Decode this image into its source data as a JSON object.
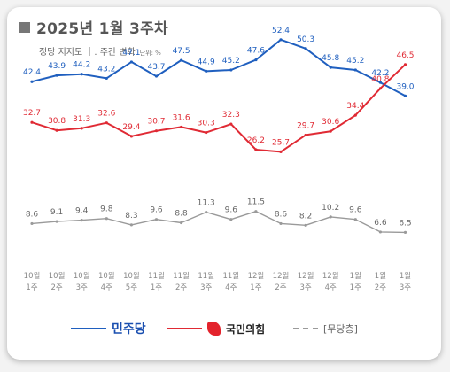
{
  "title": "2025년 1월 3주차",
  "subtitle": "정당 지지도 ｜. 주간 변화",
  "unit_note": "단위: %",
  "legend": {
    "dem": "민주당",
    "ppp": "국민의힘",
    "ind": "[무당층]"
  },
  "colors": {
    "dem": "#1f5fbf",
    "ppp": "#e02a34",
    "ind": "#9a9a9a"
  },
  "chart_data": {
    "type": "line",
    "categories": [
      [
        "10월",
        "1주"
      ],
      [
        "10월",
        "2주"
      ],
      [
        "10월",
        "3주"
      ],
      [
        "10월",
        "4주"
      ],
      [
        "10월",
        "5주"
      ],
      [
        "11월",
        "1주"
      ],
      [
        "11월",
        "2주"
      ],
      [
        "11월",
        "3주"
      ],
      [
        "11월",
        "4주"
      ],
      [
        "12월",
        "1주"
      ],
      [
        "12월",
        "2주"
      ],
      [
        "12월",
        "3주"
      ],
      [
        "12월",
        "4주"
      ],
      [
        "1월",
        "1주"
      ],
      [
        "1월",
        "2주"
      ],
      [
        "1월",
        "3주"
      ]
    ],
    "series": [
      {
        "name": "민주당",
        "color": "#1f5fbf",
        "values": [
          42.4,
          43.9,
          44.2,
          43.2,
          47.1,
          43.7,
          47.5,
          44.9,
          45.2,
          47.6,
          52.4,
          50.3,
          45.8,
          45.2,
          42.2,
          39.0
        ],
        "labels": [
          "42.4",
          "43.9",
          "44.2",
          "43.2",
          "47.1",
          "43.7",
          "47.5",
          "44.9",
          "45.2",
          "47.6",
          "52.4",
          "50.3",
          "45.8",
          "45.2",
          "42.2",
          "39.0"
        ]
      },
      {
        "name": "국민의힘",
        "color": "#e02a34",
        "values": [
          32.7,
          30.8,
          31.3,
          32.6,
          29.4,
          30.7,
          31.6,
          30.3,
          32.3,
          26.2,
          25.7,
          29.7,
          30.6,
          34.4,
          40.8,
          46.5
        ],
        "labels": [
          "32.7",
          "30.8",
          "31.3",
          "32.6",
          "29.4",
          "30.7",
          "31.6",
          "30.3",
          "32.3",
          "26.2",
          "25.7",
          "29.7",
          "30.6",
          "34.4",
          "40.8",
          "46.5"
        ]
      },
      {
        "name": "[무당층]",
        "color": "#9a9a9a",
        "values": [
          8.6,
          9.1,
          9.4,
          9.8,
          8.3,
          9.6,
          8.8,
          11.3,
          9.6,
          11.5,
          8.6,
          8.2,
          10.2,
          9.6,
          6.6,
          6.5
        ],
        "labels": [
          "8.6",
          "9.1",
          "9.4",
          "9.8",
          "8.3",
          "9.6",
          "8.8",
          "11.3",
          "9.6",
          "11.5",
          "8.6",
          "8.2",
          "10.2",
          "9.6",
          "6.6",
          "6.5"
        ]
      }
    ]
  }
}
